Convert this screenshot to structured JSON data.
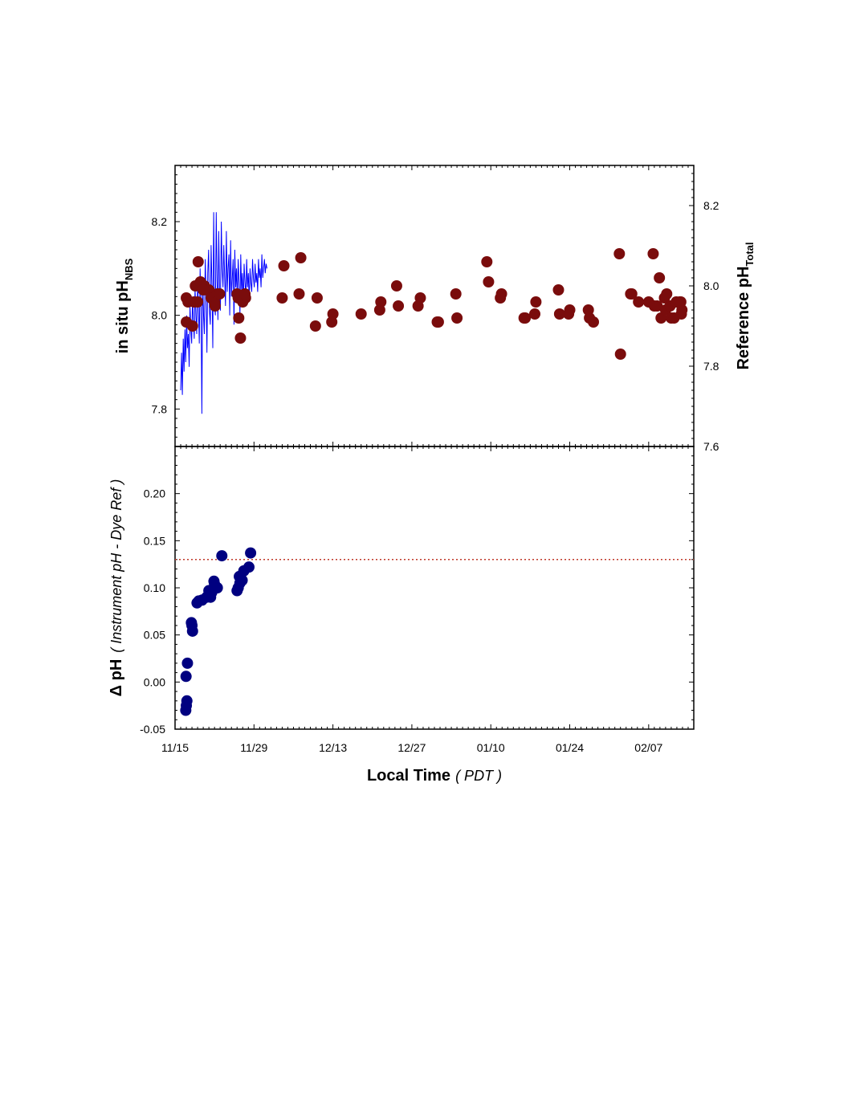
{
  "chart_data": [
    {
      "type": "scatter",
      "panel": "top",
      "ylabel": "in situ pH",
      "ylabel_subscript": "NBS",
      "ylabel_right": "Reference pH",
      "ylabel_right_subscript": "Total",
      "ylim": [
        7.72,
        8.32
      ],
      "ylim_right": [
        7.6,
        8.3
      ],
      "yticks": [
        "7.8",
        "8.0",
        "8.2"
      ],
      "yticks_right": [
        "7.6",
        "7.8",
        "8.0",
        "8.2"
      ],
      "xlim": [
        0,
        92
      ],
      "xticks": [
        "11/15",
        "11/29",
        "12/13",
        "12/27",
        "01/10",
        "01/24",
        "02/07"
      ],
      "series": [
        {
          "kind": "line",
          "color": "#0000ff",
          "x": [
            1.0,
            1.15,
            1.3,
            1.45,
            1.6,
            1.75,
            1.9,
            2.05,
            2.2,
            2.35,
            2.5,
            2.65,
            2.8,
            2.95,
            3.1,
            3.25,
            3.4,
            3.55,
            3.7,
            3.85,
            4.0,
            4.15,
            4.3,
            4.45,
            4.6,
            4.75,
            4.9,
            5.05,
            5.2,
            5.35,
            5.5,
            5.65,
            5.8,
            5.95,
            6.1,
            6.25,
            6.4,
            6.55,
            6.7,
            6.85,
            7.0,
            7.15,
            7.3,
            7.45,
            7.6,
            7.75,
            7.9,
            8.05,
            8.2,
            8.35,
            8.5,
            8.65,
            8.8,
            8.95,
            9.1,
            9.25,
            9.4,
            9.55,
            9.7,
            9.85,
            10.0,
            10.15,
            10.3,
            10.45,
            10.6,
            10.75,
            10.9,
            11.05,
            11.2,
            11.35,
            11.5,
            11.65,
            11.8,
            11.95,
            12.1,
            12.25,
            12.4,
            12.55,
            12.7,
            12.85,
            13.0,
            13.15,
            13.3,
            13.45,
            13.6,
            13.75,
            13.9,
            14.05,
            14.2,
            14.35,
            14.5,
            14.65,
            14.8,
            14.95,
            15.1,
            15.25,
            15.4,
            15.55,
            15.7,
            15.85,
            16.0,
            16.15,
            16.3
          ],
          "y": [
            7.84,
            7.92,
            7.83,
            7.95,
            7.88,
            7.97,
            7.9,
            8.0,
            7.93,
            7.96,
            7.89,
            8.02,
            7.97,
            7.94,
            8.04,
            7.99,
            7.95,
            8.06,
            8.0,
            7.96,
            8.07,
            8.02,
            7.94,
            8.1,
            8.03,
            7.79,
            8.08,
            8.0,
            7.96,
            8.12,
            8.05,
            7.92,
            8.09,
            8.14,
            8.01,
            7.98,
            8.15,
            8.06,
            7.93,
            8.22,
            8.02,
            8.0,
            8.22,
            8.08,
            7.99,
            8.18,
            8.04,
            8.01,
            8.2,
            8.1,
            8.06,
            8.15,
            8.08,
            8.02,
            8.18,
            8.05,
            8.1,
            8.13,
            8.0,
            8.16,
            8.04,
            8.08,
            8.12,
            7.98,
            8.14,
            8.06,
            8.1,
            8.03,
            8.12,
            8.07,
            8.0,
            8.13,
            8.05,
            8.09,
            8.02,
            8.11,
            8.07,
            8.04,
            8.12,
            8.06,
            8.09,
            8.03,
            8.1,
            8.07,
            8.05,
            8.12,
            8.08,
            8.06,
            8.11,
            8.07,
            8.09,
            8.05,
            8.12,
            8.08,
            8.1,
            8.06,
            8.13,
            8.08,
            8.1,
            8.12,
            8.09,
            8.11,
            8.1
          ]
        },
        {
          "kind": "points",
          "axis": "right",
          "color": "#7a0c0c",
          "x": [
            2.0,
            2.3,
            2.0,
            3.1,
            3.4,
            4.0,
            3.6,
            4.5,
            4.1,
            5.2,
            5.6,
            6.0,
            6.4,
            5.0,
            7.0,
            6.8,
            7.5,
            7.9,
            7.1,
            11.0,
            11.3,
            11.6,
            12.0,
            12.5,
            11.2,
            12.4,
            19.3,
            19.0,
            22.3,
            22.0,
            25.2,
            24.9,
            28.0,
            27.8,
            33.0,
            36.5,
            36.3,
            39.6,
            39.3,
            43.5,
            43.1,
            46.5,
            46.7,
            50.0,
            49.8,
            55.6,
            55.3,
            57.9,
            57.7,
            62.1,
            61.9,
            64.0,
            63.8,
            68.2,
            68.0,
            70.0,
            69.8,
            73.5,
            73.3,
            74.2,
            79.0,
            78.8,
            81.0,
            80.8,
            82.2,
            84.0,
            85.0,
            85.5,
            86.2,
            86.8,
            87.0,
            87.8,
            88.0,
            88.5,
            88.9,
            89.5,
            89.8,
            89.9,
            89.7,
            87.2,
            85.9,
            84.8
          ],
          "y": [
            7.97,
            7.96,
            7.91,
            7.9,
            7.96,
            7.96,
            8.0,
            8.01,
            8.06,
            8.0,
            7.99,
            7.99,
            7.97,
            7.99,
            7.96,
            7.97,
            7.98,
            7.98,
            7.95,
            7.98,
            7.92,
            7.87,
            7.96,
            7.97,
            7.97,
            7.98,
            8.05,
            7.97,
            8.07,
            7.98,
            7.97,
            7.9,
            7.93,
            7.91,
            7.93,
            7.96,
            7.94,
            7.95,
            8.0,
            7.97,
            7.95,
            7.91,
            7.91,
            7.92,
            7.98,
            8.01,
            8.06,
            7.98,
            7.97,
            7.92,
            7.92,
            7.96,
            7.93,
            7.93,
            7.99,
            7.94,
            7.93,
            7.92,
            7.94,
            7.91,
            7.83,
            8.08,
            7.98,
            7.98,
            7.96,
            7.96,
            7.95,
            7.95,
            7.92,
            7.97,
            7.94,
            7.95,
            7.92,
            7.92,
            7.96,
            7.96,
            7.93,
            7.94,
            7.96,
            7.98,
            8.02,
            8.08
          ]
        }
      ]
    },
    {
      "type": "scatter",
      "panel": "bottom",
      "ylabel_prefix": "Δ pH",
      "ylabel_suffix": "( Instrument pH - Dye Ref )",
      "xlabel": "Local Time",
      "xlabel_suffix": "( PDT )",
      "ylim": [
        -0.05,
        0.25
      ],
      "yticks": [
        "-0.05",
        "0.00",
        "0.05",
        "0.10",
        "0.15",
        "0.20"
      ],
      "xlim": [
        0,
        92
      ],
      "xticks": [
        "11/15",
        "11/29",
        "12/13",
        "12/27",
        "01/10",
        "01/24",
        "02/07"
      ],
      "reference_line": {
        "y": 0.13,
        "color": "#c0392b",
        "style": "dotted"
      },
      "series": [
        {
          "kind": "points",
          "color": "#000080",
          "x": [
            1.9,
            2.0,
            2.1,
            2.2,
            1.95,
            2.9,
            3.0,
            3.1,
            3.9,
            4.2,
            4.8,
            5.6,
            6.0,
            6.3,
            6.5,
            6.9,
            7.2,
            7.5,
            7.0,
            8.3,
            11.0,
            11.2,
            11.5,
            11.9,
            12.2,
            11.4,
            13.1,
            13.4
          ],
          "y": [
            -0.03,
            -0.025,
            -0.02,
            0.02,
            0.006,
            0.063,
            0.06,
            0.054,
            0.084,
            0.086,
            0.087,
            0.09,
            0.097,
            0.09,
            0.095,
            0.107,
            0.1,
            0.1,
            0.104,
            0.134,
            0.097,
            0.1,
            0.105,
            0.108,
            0.118,
            0.112,
            0.122,
            0.137
          ]
        }
      ]
    }
  ]
}
